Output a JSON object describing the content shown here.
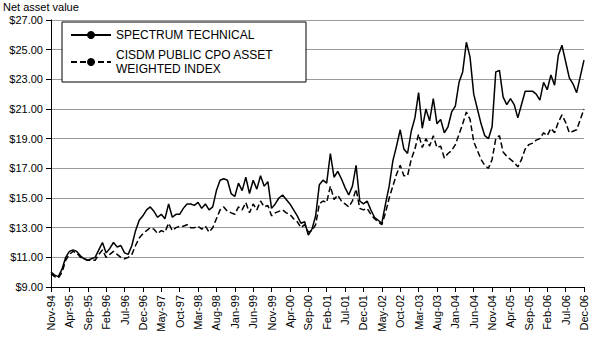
{
  "chart_data": {
    "type": "line",
    "y_label": "Net asset value",
    "categories": [
      "Nov-94",
      null,
      null,
      null,
      null,
      "Apr-95",
      null,
      null,
      null,
      null,
      "Sep-95",
      null,
      null,
      null,
      null,
      "Feb-96",
      null,
      null,
      null,
      null,
      "Jul-96",
      null,
      null,
      null,
      null,
      "Dec-96",
      null,
      null,
      null,
      null,
      "May-97",
      null,
      null,
      null,
      null,
      "Oct-97",
      null,
      null,
      null,
      null,
      "Mar-98",
      null,
      null,
      null,
      null,
      "Aug-98",
      null,
      null,
      null,
      null,
      "Jan-99",
      null,
      null,
      null,
      null,
      "Jun-99",
      null,
      null,
      null,
      null,
      "Nov-99",
      null,
      null,
      null,
      null,
      "Apr-00",
      null,
      null,
      null,
      null,
      "Sep-00",
      null,
      null,
      null,
      null,
      "Feb-01",
      null,
      null,
      null,
      null,
      "Jul-01",
      null,
      null,
      null,
      null,
      "Dec-01",
      null,
      null,
      null,
      null,
      "May-02",
      null,
      null,
      null,
      null,
      "Oct-02",
      null,
      null,
      null,
      null,
      "Mar-03",
      null,
      null,
      null,
      null,
      "Aug-03",
      null,
      null,
      null,
      null,
      "Jan-04",
      null,
      null,
      null,
      null,
      "Jun-04",
      null,
      null,
      null,
      null,
      "Nov-04",
      null,
      null,
      null,
      null,
      "Apr-05",
      null,
      null,
      null,
      null,
      "Sep-05",
      null,
      null,
      null,
      null,
      "Feb-06",
      null,
      null,
      null,
      null,
      "Jul-06",
      null,
      null,
      null,
      null,
      "Dec-06"
    ],
    "series": [
      {
        "name": "SPECTRUM TECHNICAL",
        "color": "#000000",
        "line_style": "solid",
        "values": [
          10.0,
          9.8,
          9.7,
          10.2,
          11.0,
          11.4,
          11.5,
          11.4,
          11.1,
          10.9,
          10.8,
          10.9,
          11.0,
          11.5,
          12.0,
          11.3,
          11.6,
          12.0,
          11.7,
          11.8,
          11.3,
          11.2,
          11.8,
          12.8,
          13.5,
          13.8,
          14.2,
          14.4,
          14.1,
          13.7,
          13.9,
          13.6,
          14.6,
          13.7,
          13.9,
          13.9,
          14.3,
          14.6,
          14.6,
          14.5,
          14.7,
          14.3,
          14.6,
          14.2,
          14.4,
          15.5,
          16.2,
          16.3,
          16.2,
          15.3,
          15.1,
          16.0,
          15.5,
          16.4,
          15.3,
          16.2,
          15.6,
          16.5,
          15.8,
          16.1,
          14.3,
          14.6,
          15.0,
          15.2,
          14.9,
          14.6,
          14.2,
          13.8,
          13.3,
          13.4,
          12.5,
          12.9,
          13.8,
          15.9,
          16.2,
          16.0,
          18.0,
          16.4,
          16.8,
          16.3,
          15.7,
          15.2,
          15.8,
          17.2,
          14.8,
          14.6,
          14.8,
          14.2,
          13.7,
          13.5,
          13.3,
          14.6,
          15.8,
          17.5,
          18.5,
          19.6,
          18.3,
          18.0,
          19.5,
          20.4,
          22.1,
          19.7,
          21.0,
          20.2,
          21.7,
          20.0,
          20.3,
          19.4,
          19.8,
          20.8,
          21.2,
          22.8,
          23.5,
          25.5,
          24.5,
          22.0,
          21.0,
          20.0,
          19.2,
          19.0,
          19.8,
          23.5,
          23.6,
          21.8,
          21.3,
          21.7,
          21.3,
          20.4,
          21.3,
          22.2,
          22.2,
          22.2,
          22.0,
          21.6,
          22.8,
          22.3,
          23.3,
          22.6,
          24.6,
          25.3,
          24.2,
          23.1,
          22.7,
          22.1,
          23.2,
          24.3
        ]
      },
      {
        "name": "CISDM PUBLIC CPO ASSET WEIGHTED INDEX",
        "color": "#000000",
        "line_style": "dashed",
        "values": [
          9.9,
          9.7,
          9.6,
          10.0,
          10.8,
          11.2,
          11.4,
          11.3,
          11.0,
          10.9,
          10.8,
          10.8,
          10.8,
          11.2,
          11.5,
          11.0,
          11.2,
          11.4,
          11.2,
          11.0,
          10.9,
          11.0,
          11.2,
          11.8,
          12.3,
          12.6,
          12.8,
          13.0,
          12.9,
          12.6,
          12.8,
          12.7,
          13.3,
          12.8,
          13.0,
          13.1,
          13.1,
          13.2,
          13.0,
          13.0,
          13.1,
          12.9,
          13.1,
          12.7,
          13.0,
          13.6,
          14.2,
          14.4,
          14.1,
          14.0,
          13.9,
          14.4,
          14.2,
          14.7,
          14.0,
          14.6,
          14.2,
          14.8,
          14.4,
          14.5,
          13.8,
          14.0,
          14.1,
          14.2,
          14.0,
          13.9,
          13.6,
          13.4,
          13.0,
          13.2,
          12.7,
          12.8,
          13.2,
          14.6,
          14.8,
          14.7,
          15.8,
          14.9,
          15.2,
          14.8,
          14.6,
          14.4,
          14.8,
          15.6,
          14.3,
          14.2,
          14.3,
          13.9,
          13.6,
          13.4,
          13.2,
          14.0,
          15.0,
          15.8,
          16.6,
          17.2,
          16.5,
          16.5,
          17.6,
          18.3,
          19.3,
          18.4,
          19.0,
          18.5,
          19.2,
          18.4,
          18.5,
          17.7,
          18.0,
          18.2,
          18.6,
          19.3,
          20.0,
          20.8,
          20.3,
          18.8,
          18.2,
          17.6,
          17.2,
          17.0,
          17.6,
          19.0,
          19.2,
          18.1,
          17.8,
          17.6,
          17.4,
          17.1,
          17.6,
          18.3,
          18.6,
          18.7,
          18.9,
          19.0,
          19.4,
          19.2,
          19.7,
          19.4,
          20.1,
          20.6,
          20.1,
          19.4,
          19.5,
          19.6,
          20.3,
          21.0
        ]
      }
    ],
    "ylim": [
      9,
      27
    ],
    "yticks": [
      {
        "value": 9,
        "label": "$9.00"
      },
      {
        "value": 11,
        "label": "$11.00"
      },
      {
        "value": 13,
        "label": "$13.00"
      },
      {
        "value": 15,
        "label": "$15.00"
      },
      {
        "value": 17,
        "label": "$17.00"
      },
      {
        "value": 19,
        "label": "$19.00"
      },
      {
        "value": 21,
        "label": "$21.00"
      },
      {
        "value": 23,
        "label": "$23.00"
      },
      {
        "value": 25,
        "label": "$25.00"
      },
      {
        "value": 27,
        "label": "$27.00"
      }
    ],
    "grid": true,
    "legend": "upper left",
    "marker": "none"
  }
}
